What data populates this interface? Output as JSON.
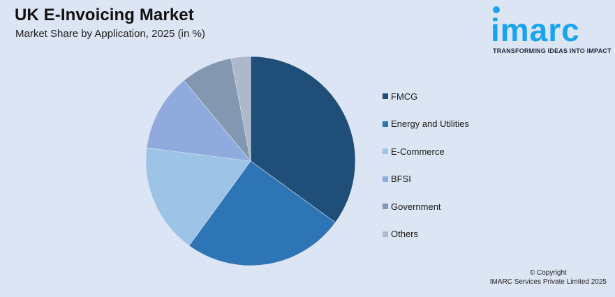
{
  "header": {
    "title": "UK E-Invoicing Market",
    "subtitle": "Market Share by Application, 2025 (in %)"
  },
  "logo": {
    "wordmark": "imarc",
    "tagline": "TRANSFORMING IDEAS INTO IMPACT",
    "color": "#1aa3ef"
  },
  "footer": {
    "copyright_line1": "© Copyright",
    "copyright_line2": "IMARC Services Private Limited 2025"
  },
  "chart_data": {
    "type": "pie",
    "title": "UK E-Invoicing Market",
    "subtitle": "Market Share by Application, 2025 (in %)",
    "categories": [
      "FMCG",
      "Energy and Utilities",
      "E-Commerce",
      "BFSI",
      "Government",
      "Others"
    ],
    "values": [
      35,
      25,
      17,
      12,
      8,
      3
    ],
    "colors": [
      "#1f4e79",
      "#2e75b6",
      "#9dc3e6",
      "#8faadc",
      "#8497b0",
      "#adb9ca"
    ],
    "start_angle_deg": 0,
    "direction": "clockwise",
    "legend_position": "right",
    "unit": "%"
  }
}
